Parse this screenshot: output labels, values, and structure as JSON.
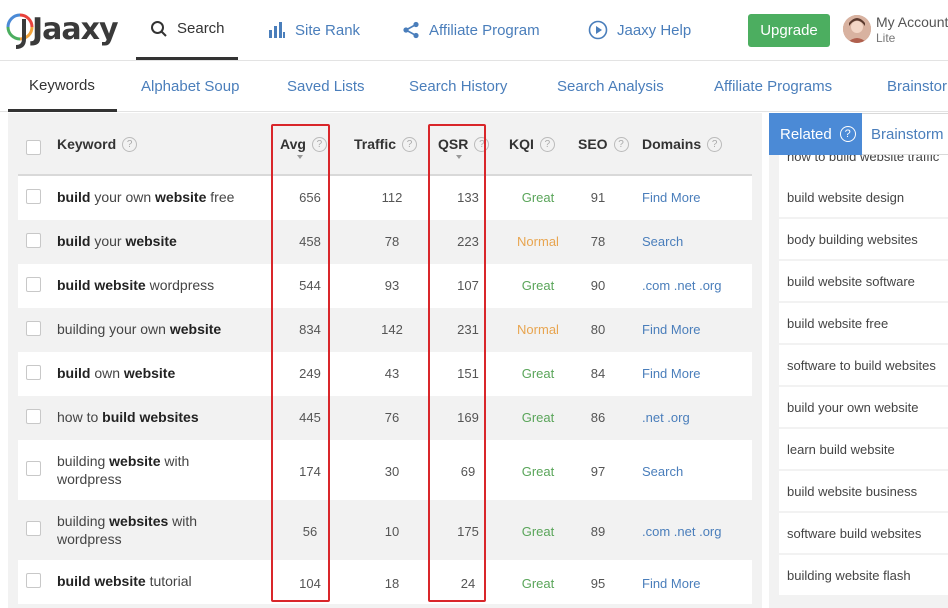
{
  "app": {
    "logo_text": "Jaaxy"
  },
  "nav": {
    "search": "Search",
    "site_rank": "Site Rank",
    "affiliate_program": "Affiliate Program",
    "help": "Jaaxy Help",
    "upgrade": "Upgrade",
    "account_name": "My Account",
    "account_level": "Lite"
  },
  "subtabs": [
    "Keywords",
    "Alphabet Soup",
    "Saved Lists",
    "Search History",
    "Search Analysis",
    "Affiliate Programs",
    "Brainstorm"
  ],
  "table": {
    "headers": {
      "keyword": "Keyword",
      "avg": "Avg",
      "traffic": "Traffic",
      "qsr": "QSR",
      "kqi": "KQI",
      "seo": "SEO",
      "domains": "Domains"
    },
    "help_glyph": "?",
    "rows": [
      {
        "kw_parts": [
          [
            "build",
            true
          ],
          [
            " your own ",
            false
          ],
          [
            "website",
            true
          ],
          [
            " free",
            false
          ]
        ],
        "avg": "656",
        "traffic": "112",
        "qsr": "133",
        "kqi": "Great",
        "seo": "91",
        "domains": "Find More"
      },
      {
        "kw_parts": [
          [
            "build",
            true
          ],
          [
            " your ",
            false
          ],
          [
            "website",
            true
          ]
        ],
        "avg": "458",
        "traffic": "78",
        "qsr": "223",
        "kqi": "Normal",
        "seo": "78",
        "domains": "Search"
      },
      {
        "kw_parts": [
          [
            "build website",
            true
          ],
          [
            " wordpress",
            false
          ]
        ],
        "avg": "544",
        "traffic": "93",
        "qsr": "107",
        "kqi": "Great",
        "seo": "90",
        "domains": ".com .net .org"
      },
      {
        "kw_parts": [
          [
            "building your own ",
            false
          ],
          [
            "website",
            true
          ]
        ],
        "avg": "834",
        "traffic": "142",
        "qsr": "231",
        "kqi": "Normal",
        "seo": "80",
        "domains": "Find More"
      },
      {
        "kw_parts": [
          [
            "build",
            true
          ],
          [
            " own ",
            false
          ],
          [
            "website",
            true
          ]
        ],
        "avg": "249",
        "traffic": "43",
        "qsr": "151",
        "kqi": "Great",
        "seo": "84",
        "domains": "Find More"
      },
      {
        "kw_parts": [
          [
            "how to ",
            false
          ],
          [
            "build websites",
            true
          ]
        ],
        "avg": "445",
        "traffic": "76",
        "qsr": "169",
        "kqi": "Great",
        "seo": "86",
        "domains": ".net .org"
      },
      {
        "kw_parts": [
          [
            "building ",
            false
          ],
          [
            "website",
            true
          ],
          [
            " with wordpress",
            false
          ]
        ],
        "avg": "174",
        "traffic": "30",
        "qsr": "69",
        "kqi": "Great",
        "seo": "97",
        "domains": "Search"
      },
      {
        "kw_parts": [
          [
            "building ",
            false
          ],
          [
            "websites",
            true
          ],
          [
            " with wordpress",
            false
          ]
        ],
        "avg": "56",
        "traffic": "10",
        "qsr": "175",
        "kqi": "Great",
        "seo": "89",
        "domains": ".com .net .org"
      },
      {
        "kw_parts": [
          [
            "build website",
            true
          ],
          [
            " tutorial",
            false
          ]
        ],
        "avg": "104",
        "traffic": "18",
        "qsr": "24",
        "kqi": "Great",
        "seo": "95",
        "domains": "Find More"
      }
    ]
  },
  "right_panel": {
    "tab_related": "Related",
    "tab_brainstorm": "Brainstorm",
    "help_glyph": "?",
    "items": [
      "how to build website traffic",
      "build website design",
      "body building websites",
      "build website software",
      "build website free",
      "software to build websites",
      "build your own website",
      "learn build website",
      "build website business",
      "software build websites",
      "building website flash"
    ]
  },
  "colors": {
    "link_blue": "#4a7ebb",
    "upgrade_green": "#4cae60",
    "kqi_great": "#5aa55a",
    "kqi_normal": "#e8a550",
    "highlight_red": "#d9262a",
    "related_tab_blue": "#4b8ad6"
  },
  "icons": {
    "search": "magnifier-icon",
    "site_rank": "bar-chart-icon",
    "affiliate": "share-icon",
    "help": "play-circle-icon"
  }
}
